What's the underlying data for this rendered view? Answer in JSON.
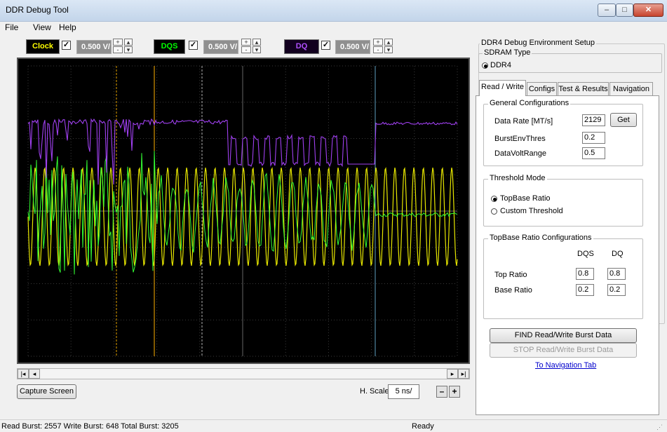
{
  "window": {
    "title": "DDR Debug Tool",
    "controls": {
      "minimize": "–",
      "maximize": "□",
      "close": "✕"
    }
  },
  "menu": [
    "File",
    "View",
    "Help"
  ],
  "channels": [
    {
      "label": "Clock",
      "checked": true,
      "volts": "0.500 V/",
      "color": "#ffff00",
      "box": "#000000"
    },
    {
      "label": "DQS",
      "checked": true,
      "volts": "0.500 V/",
      "color": "#00ff00",
      "box": "#000000"
    },
    {
      "label": "DQ",
      "checked": true,
      "volts": "0.500 V/",
      "color": "#b050ff",
      "box": "#1a0033"
    }
  ],
  "scroll": {
    "left_end": "|◂",
    "left": "◂",
    "right": "▸",
    "right_end": "▸|"
  },
  "capture_label": "Capture Screen",
  "hscale": {
    "label": "H. Scale",
    "value": "5 ns/",
    "minus": "–",
    "plus": "+"
  },
  "setup": {
    "title": "DDR4 Debug Environment Setup",
    "sdram_type_label": "SDRAM Type",
    "sdram_option": "DDR4",
    "tabs": [
      "Read / Write",
      "Configs",
      "Test & Results",
      "Navigation"
    ],
    "general": {
      "title": "General Configurations",
      "data_rate_label": "Data Rate [MT/s]",
      "data_rate_value": "2129",
      "get_label": "Get",
      "burst_env_label": "BurstEnvThres",
      "burst_env_value": "0.2",
      "data_volt_label": "DataVoltRange",
      "data_volt_value": "0.5"
    },
    "threshold": {
      "title": "Threshold Mode",
      "option1": "TopBase Ratio",
      "option2": "Custom Threshold"
    },
    "ratio": {
      "title": "TopBase Ratio Configurations",
      "col_dqs": "DQS",
      "col_dq": "DQ",
      "top_label": "Top Ratio",
      "top_dqs": "0.8",
      "top_dq": "0.8",
      "base_label": "Base Ratio",
      "base_dqs": "0.2",
      "base_dq": "0.2"
    },
    "find_label": "FIND Read/Write Burst Data",
    "stop_label": "STOP Read/Write Burst Data",
    "nav_link": "To Navigation Tab"
  },
  "status": {
    "left": "Read Burst: 2557  Write Burst: 648  Total Burst: 3205",
    "right": "Ready"
  }
}
